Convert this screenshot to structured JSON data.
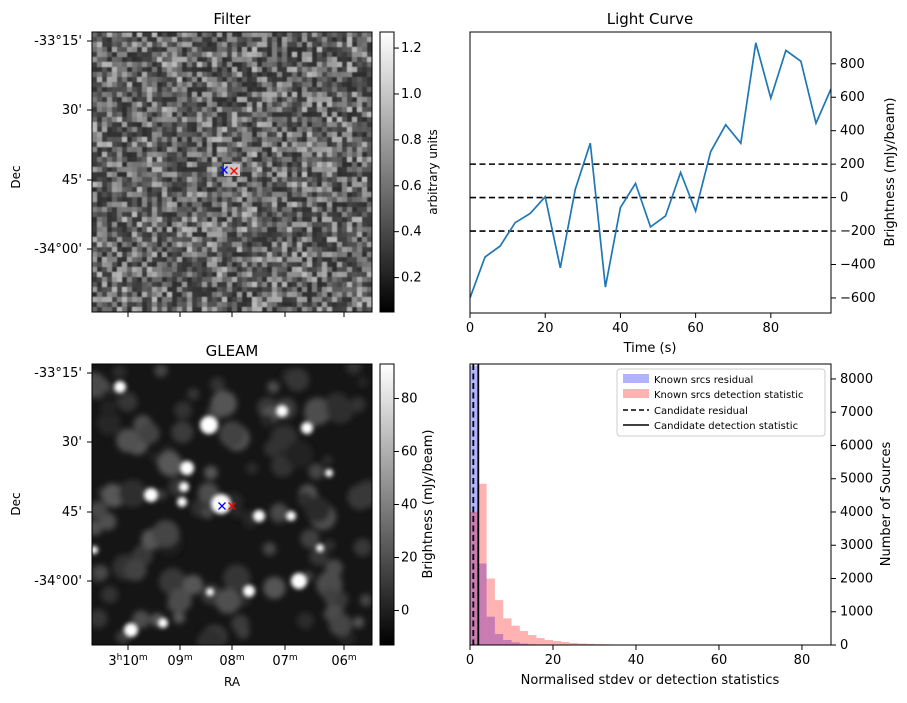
{
  "chart_data": [
    {
      "type": "heatmap",
      "title": "Filter",
      "ylabel": "Dec",
      "y_ticks": [
        "-33°15'",
        "30'",
        "45'",
        "-34°00'"
      ],
      "colorbar": {
        "label": "arbitrary units",
        "ticks": [
          "0.2",
          "0.4",
          "0.6",
          "0.8",
          "1.0",
          "1.2"
        ],
        "range": [
          0.05,
          1.27
        ],
        "colormap": "gray"
      },
      "markers": [
        {
          "symbol": "x",
          "color": "#0000ff"
        },
        {
          "symbol": "x",
          "color": "#ff0000"
        }
      ]
    },
    {
      "type": "line",
      "title": "Light Curve",
      "xlabel": "Time (s)",
      "ylabel": "Brightness (mJy/beam)",
      "xlim": [
        0,
        96
      ],
      "ylim": [
        -690,
        990
      ],
      "x_ticks": [
        "0",
        "20",
        "40",
        "60",
        "80"
      ],
      "y_ticks": [
        "−600",
        "−400",
        "−200",
        "0",
        "200",
        "400",
        "600",
        "800"
      ],
      "line_color": "#1f77b4",
      "x": [
        0,
        4,
        8,
        12,
        16,
        20,
        24,
        28,
        32,
        36,
        40,
        44,
        48,
        52,
        56,
        60,
        64,
        68,
        72,
        76,
        80,
        84,
        88,
        92,
        96
      ],
      "y": [
        -600,
        -355,
        -290,
        -150,
        -95,
        5,
        -420,
        50,
        325,
        -535,
        -60,
        85,
        -175,
        -110,
        150,
        -80,
        275,
        435,
        325,
        925,
        595,
        880,
        815,
        445,
        650
      ],
      "hlines": [
        {
          "y": 200,
          "style": "dashed"
        },
        {
          "y": 0,
          "style": "dashed"
        },
        {
          "y": -200,
          "style": "dashed"
        }
      ]
    },
    {
      "type": "heatmap",
      "title": "GLEAM",
      "xlabel": "RA",
      "ylabel": "Dec",
      "x_ticks": [
        "3h10m",
        "09m",
        "08m",
        "07m",
        "06m"
      ],
      "y_ticks": [
        "-33°15'",
        "30'",
        "45'",
        "-34°00'"
      ],
      "colorbar": {
        "label": "Brightness (mJy/beam)",
        "ticks": [
          "0",
          "20",
          "40",
          "60",
          "80"
        ],
        "range": [
          -13,
          93
        ],
        "colormap": "gray"
      },
      "markers": [
        {
          "symbol": "x",
          "color": "#0000ff"
        },
        {
          "symbol": "x",
          "color": "#ff0000"
        }
      ]
    },
    {
      "type": "bar",
      "subtype": "histogram",
      "xlabel": "Normalised stdev or detection statistics",
      "ylabel": "Number of Sources",
      "xlim": [
        0,
        87
      ],
      "ylim": [
        0,
        8450
      ],
      "x_ticks": [
        "0",
        "20",
        "40",
        "60",
        "80"
      ],
      "y_ticks": [
        "0",
        "1000",
        "2000",
        "3000",
        "4000",
        "5000",
        "6000",
        "7000",
        "8000"
      ],
      "bin_width": 2,
      "series": [
        {
          "name": "Known srcs residual",
          "color": "#0000ff",
          "alpha": 0.3,
          "x": [
            0,
            2,
            4,
            6,
            8,
            10,
            12,
            14,
            16
          ],
          "values": [
            8400,
            2450,
            850,
            330,
            150,
            80,
            40,
            20,
            10
          ]
        },
        {
          "name": "Known srcs detection statistic",
          "color": "#ff0000",
          "alpha": 0.3,
          "x": [
            0,
            2,
            4,
            6,
            8,
            10,
            12,
            14,
            16,
            18,
            20,
            22,
            24,
            26,
            28,
            30,
            32,
            34,
            36,
            38,
            40
          ],
          "values": [
            4000,
            4850,
            2000,
            1350,
            800,
            580,
            420,
            300,
            210,
            150,
            120,
            90,
            60,
            45,
            35,
            25,
            20,
            15,
            12,
            10,
            8
          ]
        }
      ],
      "vlines": [
        {
          "name": "Candidate residual",
          "x": 0.8,
          "style": "dashed"
        },
        {
          "name": "Candidate detection statistic",
          "x": 2.0,
          "style": "solid"
        }
      ],
      "legend_position": "top-right"
    }
  ]
}
